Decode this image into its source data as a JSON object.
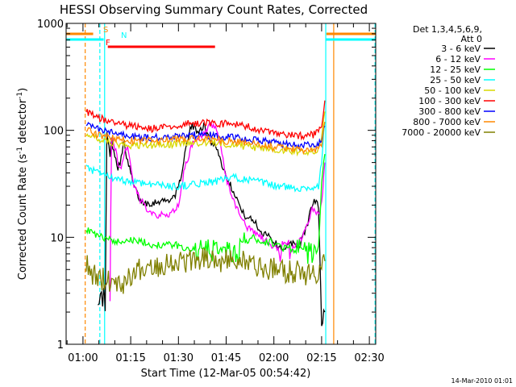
{
  "chart_data": {
    "type": "line",
    "title": "HESSI Observing Summary Count Rates, Corrected",
    "xlabel": "Start Time (12-Mar-05 00:54:42)",
    "ylabel_main": "Corrected Count Rate (s",
    "ylabel_sup1": "-1",
    "ylabel_mid": " detector",
    "ylabel_sup2": "-1",
    "ylabel_end": ")",
    "timestamp": "14-Mar-2010 01:01",
    "x_range": [
      "00:54:42",
      "02:32:00"
    ],
    "y_scale": "log",
    "ylim": [
      1,
      1000
    ],
    "x_ticks": [
      {
        "t": 60,
        "label": "01:00"
      },
      {
        "t": 75,
        "label": "01:15"
      },
      {
        "t": 90,
        "label": "01:30"
      },
      {
        "t": 105,
        "label": "01:45"
      },
      {
        "t": 120,
        "label": "02:00"
      },
      {
        "t": 135,
        "label": "02:15"
      },
      {
        "t": 150,
        "label": "02:30"
      }
    ],
    "y_ticks": [
      {
        "v": 1,
        "label": "1"
      },
      {
        "v": 10,
        "label": "10"
      },
      {
        "v": 100,
        "label": "100"
      },
      {
        "v": 1000,
        "label": "1000"
      }
    ],
    "legend_title_1": "Det 1,3,4,5,6,9,",
    "legend_title_2": "Att 0",
    "legend_placement": "right",
    "series": [
      {
        "name": "3 - 6 keV",
        "color": "#000000",
        "t": [
          64.7,
          65.5,
          66.5,
          67,
          67.5,
          68.5,
          69,
          70,
          71,
          72,
          73,
          74,
          75,
          76,
          78,
          80,
          82,
          84,
          86,
          88,
          90,
          92,
          94,
          96,
          98,
          100,
          102,
          103,
          104,
          105,
          106,
          108,
          110,
          112,
          114,
          116,
          118,
          120,
          122,
          124,
          126,
          128,
          130,
          131,
          132,
          133,
          134,
          135,
          136
        ],
        "v": [
          3,
          2.5,
          3,
          2,
          90,
          60,
          80,
          60,
          45,
          55,
          80,
          50,
          40,
          30,
          22,
          21,
          21,
          22,
          22,
          23,
          28,
          60,
          110,
          100,
          110,
          80,
          70,
          55,
          45,
          38,
          32,
          25,
          17,
          15,
          14,
          11,
          11,
          9,
          8,
          8,
          9,
          8,
          12,
          15,
          20,
          22,
          20,
          1.5,
          2
        ]
      },
      {
        "name": "6 - 12 keV",
        "color": "#ff00ff",
        "t": [
          68.5,
          69,
          70,
          71,
          72,
          73,
          74,
          75,
          76,
          78,
          80,
          82,
          84,
          86,
          88,
          90,
          92,
          94,
          96,
          98,
          100,
          102,
          103,
          104,
          105,
          106,
          108,
          110,
          112,
          114,
          116,
          118,
          120,
          122,
          124,
          126,
          128,
          130,
          131,
          132,
          133,
          134,
          135,
          136
        ],
        "v": [
          3,
          90,
          70,
          50,
          45,
          60,
          75,
          45,
          30,
          22,
          19,
          17,
          16,
          16,
          17,
          20,
          45,
          70,
          80,
          90,
          110,
          100,
          75,
          55,
          35,
          28,
          20,
          15,
          12,
          11,
          10,
          9,
          8,
          7.5,
          7.5,
          8,
          9,
          12,
          15,
          18,
          18,
          16,
          20,
          50
        ]
      },
      {
        "name": "12 - 25 keV",
        "color": "#00ff00",
        "t": [
          61,
          63,
          65,
          67,
          69,
          71,
          73,
          75,
          77,
          79,
          81,
          83,
          85,
          87,
          89,
          91,
          93,
          95,
          97,
          99,
          101,
          103,
          105,
          107,
          109,
          111,
          113,
          115,
          117,
          119,
          121,
          123,
          125,
          127,
          129,
          131,
          133,
          134,
          135,
          136
        ],
        "v": [
          12,
          11,
          10,
          10,
          9.5,
          9,
          9.5,
          9.5,
          9,
          9,
          8.5,
          8.5,
          8.5,
          8.5,
          8.5,
          8,
          8,
          7.5,
          7.5,
          7.5,
          7.5,
          8,
          7.5,
          7,
          7.5,
          9,
          10,
          9.5,
          9,
          9,
          8.5,
          8,
          8,
          7.5,
          7.5,
          7,
          7,
          8,
          30,
          60
        ]
      },
      {
        "name": "25 - 50 keV",
        "color": "#00ffff",
        "t": [
          61,
          63,
          65,
          67,
          69,
          71,
          73,
          75,
          77,
          79,
          81,
          83,
          85,
          87,
          89,
          91,
          93,
          95,
          97,
          99,
          101,
          103,
          105,
          107,
          109,
          111,
          113,
          115,
          117,
          119,
          121,
          123,
          125,
          127,
          129,
          131,
          133,
          134,
          135,
          136
        ],
        "v": [
          45,
          42,
          40,
          38,
          36,
          34,
          34,
          33,
          33,
          32,
          32,
          31,
          31,
          30,
          30,
          30,
          31,
          31,
          32,
          33,
          33,
          34,
          35,
          36,
          36,
          35,
          34,
          33,
          32,
          31,
          30,
          30,
          29,
          29,
          29,
          29,
          29,
          30,
          50,
          120
        ]
      },
      {
        "name": "50 - 100 keV",
        "color": "#d8d800",
        "t": [
          61,
          63,
          65,
          67,
          69,
          71,
          73,
          75,
          77,
          79,
          81,
          83,
          85,
          87,
          89,
          91,
          93,
          95,
          97,
          99,
          101,
          103,
          105,
          107,
          109,
          111,
          113,
          115,
          117,
          119,
          121,
          123,
          125,
          127,
          129,
          131,
          133,
          134,
          135,
          136
        ],
        "v": [
          95,
          88,
          82,
          78,
          76,
          74,
          73,
          72,
          72,
          72,
          72,
          73,
          73,
          74,
          75,
          76,
          76,
          76,
          77,
          77,
          77,
          76,
          75,
          74,
          73,
          71,
          70,
          69,
          68,
          67,
          66,
          65,
          65,
          64,
          64,
          64,
          64,
          65,
          80,
          150
        ]
      },
      {
        "name": "100 - 300 keV",
        "color": "#ff0000",
        "t": [
          61,
          63,
          65,
          67,
          69,
          71,
          73,
          75,
          77,
          79,
          81,
          83,
          85,
          87,
          89,
          91,
          93,
          95,
          97,
          99,
          101,
          103,
          105,
          107,
          109,
          111,
          113,
          115,
          117,
          119,
          121,
          123,
          125,
          127,
          129,
          131,
          133,
          134,
          135,
          136
        ],
        "v": [
          150,
          140,
          130,
          125,
          120,
          116,
          112,
          110,
          108,
          105,
          104,
          104,
          105,
          107,
          110,
          112,
          115,
          117,
          118,
          118,
          117,
          116,
          115,
          114,
          112,
          110,
          106,
          102,
          98,
          94,
          92,
          90,
          90,
          90,
          90,
          90,
          92,
          95,
          110,
          190
        ]
      },
      {
        "name": "300 - 800 keV",
        "color": "#0000ff",
        "t": [
          61,
          63,
          65,
          67,
          69,
          71,
          73,
          75,
          77,
          79,
          81,
          83,
          85,
          87,
          89,
          91,
          93,
          95,
          97,
          99,
          101,
          103,
          105,
          107,
          109,
          111,
          113,
          115,
          117,
          119,
          121,
          123,
          125,
          127,
          129,
          131,
          133,
          134,
          135,
          136
        ],
        "v": [
          115,
          108,
          102,
          98,
          95,
          92,
          90,
          88,
          87,
          86,
          86,
          86,
          86,
          86,
          87,
          88,
          89,
          90,
          90,
          90,
          89,
          88,
          87,
          86,
          85,
          84,
          82,
          80,
          79,
          78,
          76,
          75,
          74,
          73,
          72,
          72,
          72,
          73,
          80,
          110
        ]
      },
      {
        "name": "800 - 7000 keV",
        "color": "#ff8800",
        "t": [
          61,
          63,
          65,
          67,
          69,
          71,
          73,
          75,
          77,
          79,
          81,
          83,
          85,
          87,
          89,
          91,
          93,
          95,
          97,
          99,
          101,
          103,
          105,
          107,
          109,
          111,
          113,
          115,
          117,
          119,
          121,
          123,
          125,
          127,
          129,
          131,
          133,
          134,
          135,
          136
        ],
        "v": [
          100,
          95,
          90,
          87,
          85,
          83,
          82,
          81,
          80,
          80,
          80,
          80,
          80,
          81,
          82,
          82,
          83,
          83,
          83,
          82,
          82,
          81,
          80,
          79,
          78,
          77,
          75,
          74,
          72,
          70,
          69,
          68,
          67,
          66,
          65,
          65,
          65,
          66,
          75,
          120
        ]
      },
      {
        "name": "7000 - 20000 keV",
        "color": "#808000",
        "t": [
          61,
          63,
          65,
          67,
          69,
          71,
          73,
          75,
          77,
          79,
          81,
          83,
          85,
          87,
          89,
          91,
          93,
          95,
          97,
          99,
          101,
          103,
          105,
          107,
          109,
          111,
          113,
          115,
          117,
          119,
          121,
          123,
          125,
          127,
          129,
          131,
          133,
          134,
          135,
          136
        ],
        "v": [
          5.5,
          4.5,
          4.2,
          4,
          4,
          3.8,
          3.8,
          4.5,
          5,
          5,
          5.5,
          5.5,
          5.5,
          6,
          6,
          6,
          6,
          6,
          6.5,
          6.5,
          6.5,
          6,
          6,
          6,
          6,
          6,
          5.5,
          5.5,
          5,
          5,
          5,
          4.8,
          4.8,
          4.8,
          4.5,
          4.5,
          4.5,
          5,
          5,
          6
        ]
      }
    ],
    "flag_bars": [
      {
        "label": "S",
        "color": "#ff8800",
        "segments": [
          [
            54.7,
            63.2
          ],
          [
            136.5,
            152
          ]
        ]
      },
      {
        "label": "N",
        "color": "#00ffff",
        "segments": [
          [
            54.7,
            66.5
          ],
          [
            136.3,
            152
          ]
        ]
      },
      {
        "label": "F",
        "color": "#ff0000",
        "segments": [
          [
            67.8,
            101.5
          ]
        ]
      }
    ],
    "markers": [
      {
        "t": 60.7,
        "color": "#ff8800",
        "style": "dashed"
      },
      {
        "t": 65.3,
        "color": "#00ffff",
        "style": "dashed"
      },
      {
        "t": 66.8,
        "color": "#00ffff",
        "style": "solid"
      },
      {
        "t": 136.3,
        "color": "#00ffff",
        "style": "solid"
      },
      {
        "t": 138.8,
        "color": "#ff8800",
        "style": "solid"
      },
      {
        "t": 151.8,
        "color": "#00ffff",
        "style": "dashed"
      }
    ]
  }
}
